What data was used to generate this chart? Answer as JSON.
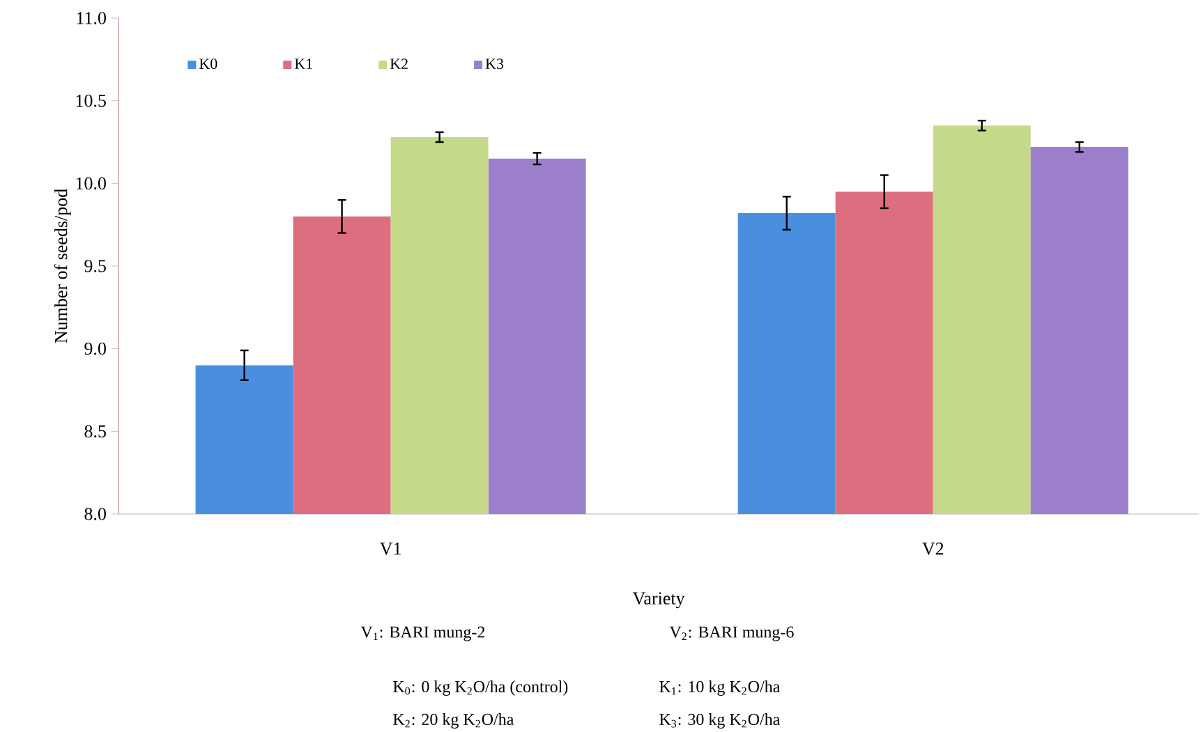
{
  "chart_data": {
    "type": "bar",
    "xlabel": "Variety",
    "ylabel": "Number of seeds/pod",
    "categories": [
      "V1",
      "V2"
    ],
    "series": [
      {
        "name": "K0",
        "color": "#4a8fdf",
        "values": [
          8.9,
          9.82
        ],
        "errors": [
          0.09,
          0.1
        ]
      },
      {
        "name": "K1",
        "color": "#dc6e80",
        "values": [
          9.8,
          9.95
        ],
        "errors": [
          0.1,
          0.1
        ]
      },
      {
        "name": "K2",
        "color": "#c5d98a",
        "values": [
          10.28,
          10.35
        ],
        "errors": [
          0.03,
          0.03
        ]
      },
      {
        "name": "K3",
        "color": "#9b7fcb",
        "values": [
          10.15,
          10.22
        ],
        "errors": [
          0.035,
          0.03
        ]
      }
    ],
    "ylim": [
      8.0,
      11.0
    ],
    "yticks": [
      {
        "value": 8.0,
        "label": "8.0"
      },
      {
        "value": 8.5,
        "label": "8.5"
      },
      {
        "value": 9.0,
        "label": "9.0"
      },
      {
        "value": 9.5,
        "label": "9.5"
      },
      {
        "value": 10.0,
        "label": "10.0"
      },
      {
        "value": 10.5,
        "label": "10.5"
      },
      {
        "value": 11.0,
        "label": "11.0"
      }
    ],
    "legend": "top left",
    "annotations": [
      "V$_{1}$: BARI mung-2",
      "V$_{2}$: BARI mung-6",
      "K$_{0}$: 0 kg K$_{2}$O/ha (control)",
      "K$_{1}$: 10 kg K$_{2}$O/ha",
      "K$_{2}$: 20 kg K$_{2}$O/ha",
      "K$_{3}$: 30 kg K$_{2}$O/ha"
    ]
  }
}
